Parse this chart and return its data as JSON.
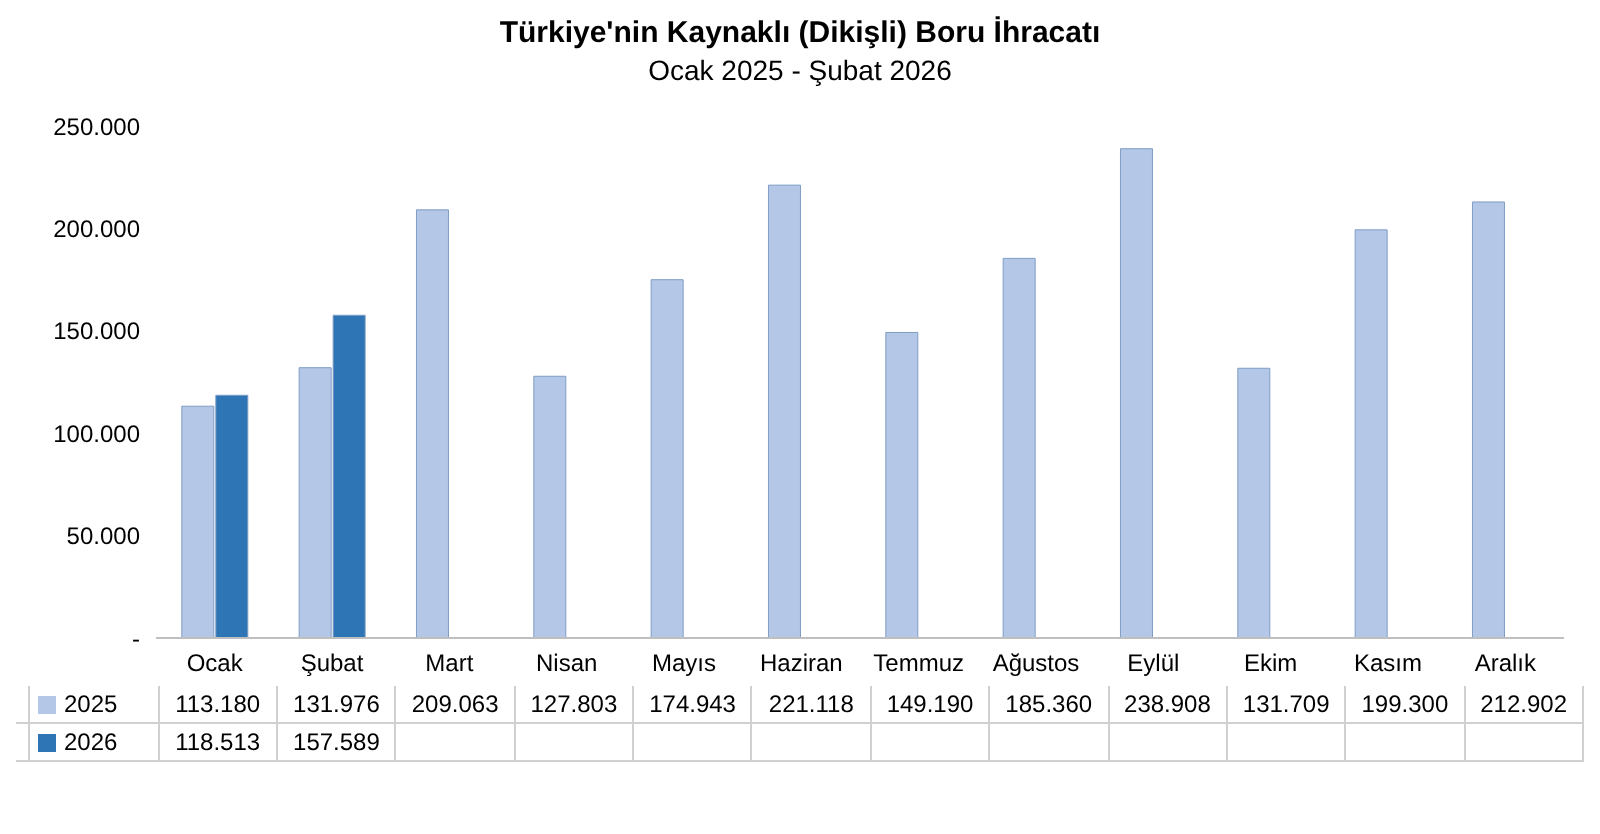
{
  "chart_data": {
    "type": "bar",
    "title": "Türkiye'nin Kaynaklı (Dikişli) Boru İhracatı",
    "subtitle": "Ocak 2025 - Şubat 2026",
    "categories": [
      "Ocak",
      "Şubat",
      "Mart",
      "Nisan",
      "Mayıs",
      "Haziran",
      "Temmuz",
      "Ağustos",
      "Eylül",
      "Ekim",
      "Kasım",
      "Aralık"
    ],
    "series": [
      {
        "name": "2025",
        "color": "#b4c7e7",
        "values": [
          113180,
          131976,
          209063,
          127803,
          174943,
          221118,
          149190,
          185360,
          238908,
          131709,
          199300,
          212902
        ],
        "value_labels": [
          "113.180",
          "131.976",
          "209.063",
          "127.803",
          "174.943",
          "221.118",
          "149.190",
          "185.360",
          "238.908",
          "131.709",
          "199.300",
          "212.902"
        ]
      },
      {
        "name": "2026",
        "color": "#2e75b6",
        "values": [
          118513,
          157589,
          null,
          null,
          null,
          null,
          null,
          null,
          null,
          null,
          null,
          null
        ],
        "value_labels": [
          "118.513",
          "157.589",
          null,
          null,
          null,
          null,
          null,
          null,
          null,
          null,
          null,
          null
        ]
      }
    ],
    "ylim": [
      0,
      250000
    ],
    "yticks": [
      {
        "value": 0,
        "label": "-"
      },
      {
        "value": 50000,
        "label": "50.000"
      },
      {
        "value": 100000,
        "label": "100.000"
      },
      {
        "value": 150000,
        "label": "150.000"
      },
      {
        "value": 200000,
        "label": "200.000"
      },
      {
        "value": 250000,
        "label": "250.000"
      }
    ],
    "grid": false,
    "legend": "bottom"
  }
}
